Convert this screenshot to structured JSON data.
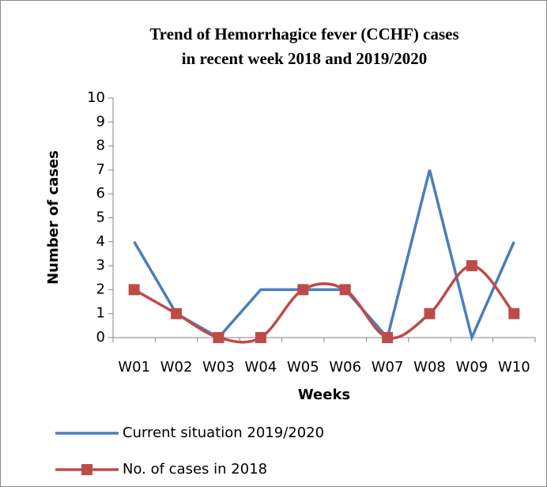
{
  "chart_data": {
    "type": "line",
    "title": [
      "Trend of Hemorrhagice fever (CCHF) cases",
      "in recent week 2018 and 2019/2020"
    ],
    "x_label": "Weeks",
    "y_label": "Number of cases",
    "categories": [
      "W01",
      "W02",
      "W03",
      "W04",
      "W05",
      "W06",
      "W07",
      "W08",
      "W09",
      "W10"
    ],
    "series": [
      {
        "name": "Current situation 2019/2020",
        "color": "#4a7ebb",
        "smooth": false,
        "marker": "none",
        "values": [
          4,
          1,
          0,
          2,
          2,
          2,
          0,
          7,
          0,
          4
        ]
      },
      {
        "name": "No. of cases in 2018",
        "color": "#be4b48",
        "smooth": true,
        "marker": "square",
        "values": [
          2,
          1,
          0,
          0,
          2,
          2,
          0,
          1,
          3,
          1
        ]
      }
    ],
    "ylim": [
      0,
      10
    ],
    "yticks": [
      0,
      1,
      2,
      3,
      4,
      5,
      6,
      7,
      8,
      9,
      10
    ],
    "grid": false,
    "legend": "bottom"
  }
}
